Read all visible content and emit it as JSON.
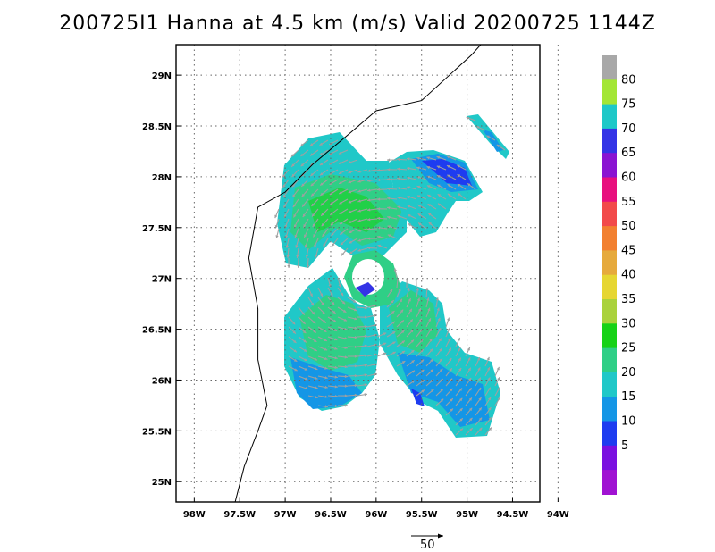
{
  "title": "200725I1 Hanna at 4.5 km (m/s) Valid 20200725 1144Z",
  "map": {
    "lat_labels": [
      "29N",
      "28.5N",
      "28N",
      "27.5N",
      "27N",
      "26.5N",
      "26N",
      "25.5N",
      "25N"
    ],
    "lat_values": [
      29,
      28.5,
      28,
      27.5,
      27,
      26.5,
      26,
      25.5,
      25
    ],
    "lon_labels": [
      "98W",
      "97.5W",
      "97W",
      "96.5W",
      "96W",
      "95.5W",
      "95W",
      "94.5W",
      "94W"
    ],
    "lon_values": [
      -98,
      -97.5,
      -97,
      -96.5,
      -96,
      -95.5,
      -95,
      -94.5,
      -94
    ],
    "lon_range": [
      -98.2,
      -94.2
    ],
    "lat_range": [
      24.8,
      29.3
    ],
    "grid": "dotted",
    "coastline": [
      [
        -94.85,
        29.3
      ],
      [
        -94.95,
        29.2
      ],
      [
        -95.5,
        28.75
      ],
      [
        -96.0,
        28.65
      ],
      [
        -96.3,
        28.42
      ],
      [
        -96.7,
        28.12
      ],
      [
        -97.0,
        27.85
      ],
      [
        -97.3,
        27.7
      ],
      [
        -97.4,
        27.2
      ],
      [
        -97.3,
        26.7
      ],
      [
        -97.3,
        26.2
      ],
      [
        -97.2,
        25.75
      ],
      [
        -97.3,
        25.5
      ],
      [
        -97.45,
        25.15
      ],
      [
        -97.55,
        24.8
      ]
    ]
  },
  "vector_reference": {
    "label": "50",
    "value": 50,
    "units": "m/s"
  },
  "colorbar": {
    "labels": [
      "80",
      "75",
      "70",
      "65",
      "60",
      "55",
      "50",
      "45",
      "40",
      "35",
      "30",
      "25",
      "20",
      "15",
      "10",
      "5"
    ],
    "colors": [
      "#a8a8a8",
      "#a3e635",
      "#1ec8c8",
      "#3434e6",
      "#8a14d2",
      "#e8107e",
      "#f24a4a",
      "#f28030",
      "#e6aa3c",
      "#e6d632",
      "#aad23c",
      "#16d216",
      "#2fcf86",
      "#20c8c8",
      "#1496e6",
      "#1e3cf0",
      "#7a10e0",
      "#a012d2"
    ]
  }
}
